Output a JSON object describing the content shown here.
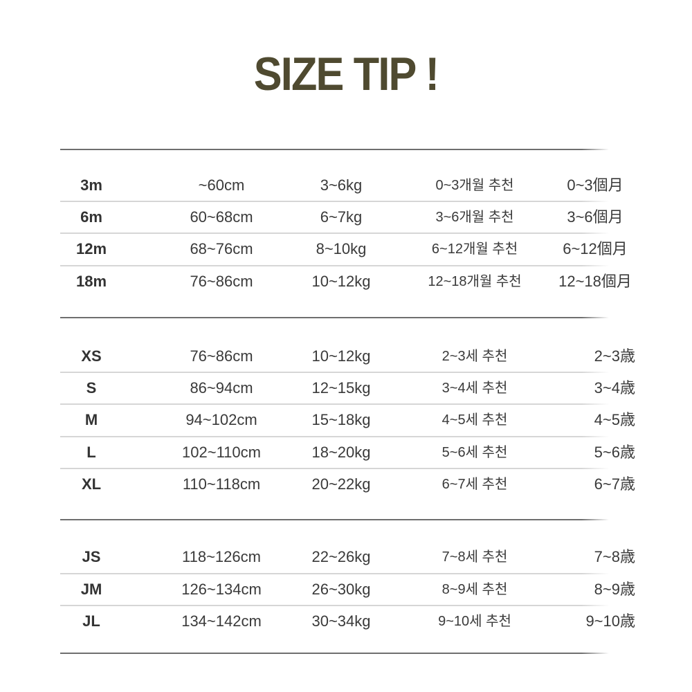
{
  "title": "SIZE TIP !",
  "groups": [
    {
      "rows": [
        [
          "3m",
          "~60cm",
          "3~6kg",
          "0~3개월 추천",
          "0~3個月"
        ],
        [
          "6m",
          "60~68cm",
          "6~7kg",
          "3~6개월 추천",
          "3~6個月"
        ],
        [
          "12m",
          "68~76cm",
          "8~10kg",
          "6~12개월 추천",
          "6~12個月"
        ],
        [
          "18m",
          "76~86cm",
          "10~12kg",
          "12~18개월 추천",
          "12~18個月"
        ]
      ]
    },
    {
      "rows": [
        [
          "XS",
          "76~86cm",
          "10~12kg",
          "2~3세 추천",
          "2~3歳"
        ],
        [
          "S",
          "86~94cm",
          "12~15kg",
          "3~4세 추천",
          "3~4歳"
        ],
        [
          "M",
          "94~102cm",
          "15~18kg",
          "4~5세 추천",
          "4~5歳"
        ],
        [
          "L",
          "102~110cm",
          "18~20kg",
          "5~6세 추천",
          "5~6歳"
        ],
        [
          "XL",
          "110~118cm",
          "20~22kg",
          "6~7세 추천",
          "6~7歳"
        ]
      ]
    },
    {
      "rows": [
        [
          "JS",
          "118~126cm",
          "22~26kg",
          "7~8세 추천",
          "7~8歳"
        ],
        [
          "JM",
          "126~134cm",
          "26~30kg",
          "8~9세 추천",
          "8~9歳"
        ],
        [
          "JL",
          "134~142cm",
          "30~34kg",
          "9~10세 추천",
          "9~10歳"
        ]
      ]
    }
  ],
  "colors": {
    "title": "#4f4a30",
    "divider": "#6e6e6e",
    "row_line": "#d6d6d6"
  }
}
